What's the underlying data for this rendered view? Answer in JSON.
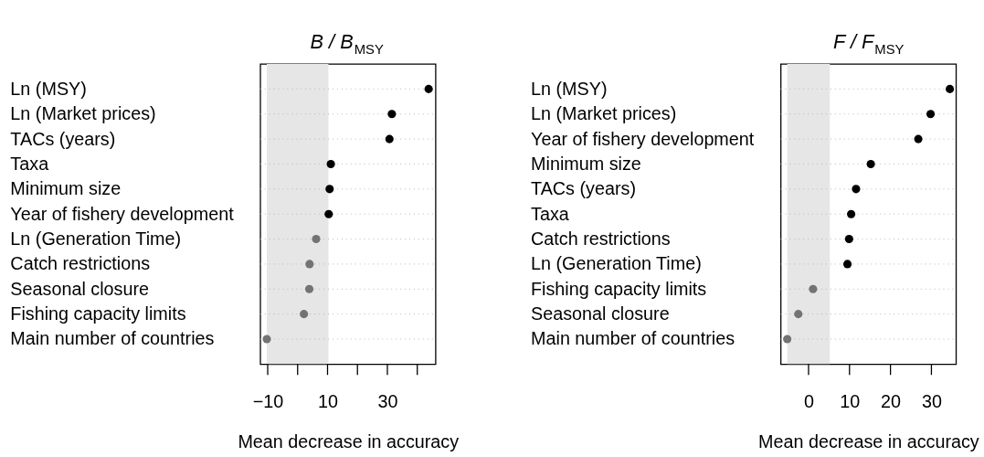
{
  "chart_data": [
    {
      "type": "scatter",
      "orientation": "horizontal",
      "title": "B / B$_{MSY}$",
      "xlabel": "Mean decrease in accuracy",
      "categories": [
        "Ln (MSY)",
        "Ln (Market prices)",
        "TACs (years)",
        "Taxa",
        "Minimum size",
        "Year of fishery development",
        "Ln (Generation Time)",
        "Catch restrictions",
        "Seasonal closure",
        "Fishing capacity limits",
        "Main number of countries"
      ],
      "values": [
        43.8,
        31.5,
        30.7,
        11.1,
        10.7,
        10.4,
        6.2,
        4.0,
        3.9,
        2.1,
        -10.3
      ],
      "colors": [
        "#000000",
        "#000000",
        "#000000",
        "#000000",
        "#000000",
        "#000000",
        "#737373",
        "#737373",
        "#737373",
        "#737373",
        "#737373"
      ],
      "xlim": [
        -12.5,
        46.1
      ],
      "xticks": [
        -10,
        {
          "value": 0,
          "label": null
        },
        10,
        {
          "value": 20,
          "label": null
        },
        30,
        {
          "value": 40,
          "label": null
        }
      ],
      "bands": [
        {
          "axis": "x",
          "from": -10.3,
          "to": 10.3,
          "color": "#e6e6e6"
        }
      ],
      "grid": "y",
      "marker": "circle"
    },
    {
      "type": "scatter",
      "orientation": "horizontal",
      "title": "F / F$_{MSY}$",
      "xlabel": "Mean decrease in accuracy",
      "categories": [
        "Ln (MSY)",
        "Ln (Market prices)",
        "Year of fishery development",
        "Minimum size",
        "TACs (years)",
        "Taxa",
        "Catch restrictions",
        "Ln (Generation Time)",
        "Fishing capacity limits",
        "Seasonal closure",
        "Main number of countries"
      ],
      "values": [
        34.5,
        29.8,
        26.8,
        15.2,
        11.6,
        10.4,
        9.9,
        9.5,
        1.1,
        -2.5,
        -5.2
      ],
      "colors": [
        "#000000",
        "#000000",
        "#000000",
        "#000000",
        "#000000",
        "#000000",
        "#000000",
        "#000000",
        "#737373",
        "#737373",
        "#737373"
      ],
      "xlim": [
        -6.8,
        36.0
      ],
      "xticks": [
        0,
        10,
        20,
        30
      ],
      "bands": [
        {
          "axis": "x",
          "from": -5.2,
          "to": 5.2,
          "color": "#e6e6e6"
        }
      ],
      "grid": "y",
      "marker": "circle"
    }
  ]
}
